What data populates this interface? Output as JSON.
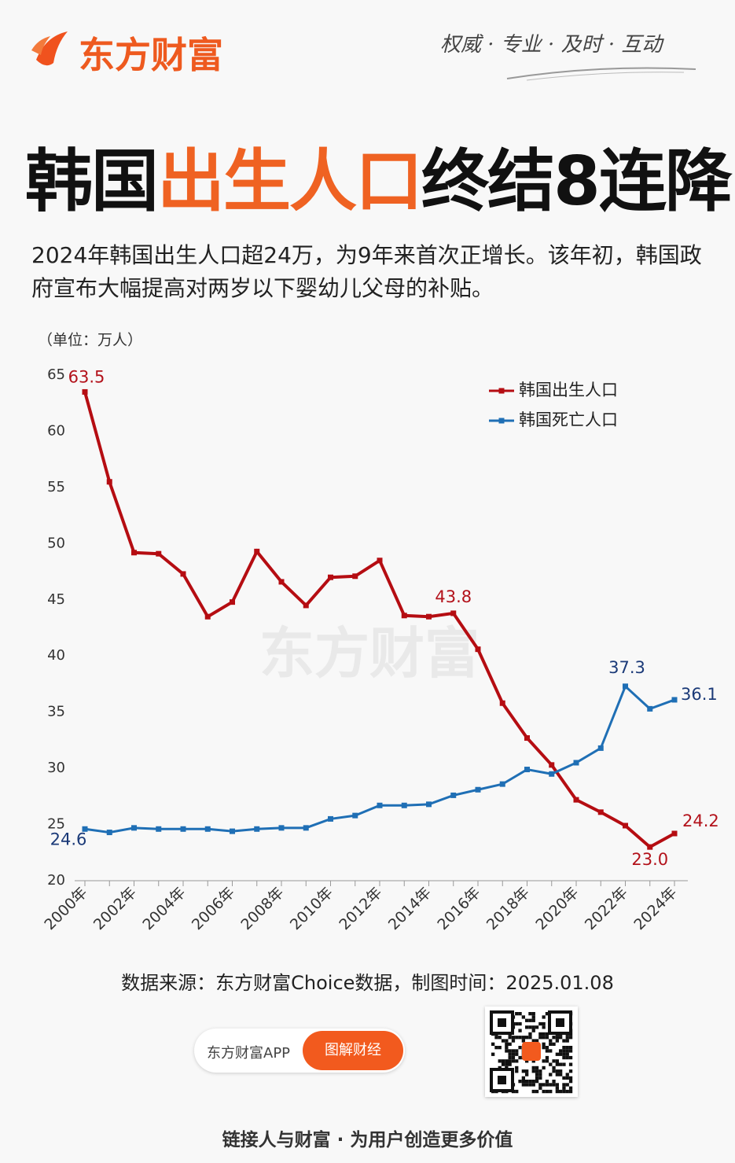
{
  "header": {
    "logo": "东方财富",
    "slogan": "权威 · 专业 · 及时 · 互动"
  },
  "title": {
    "parts": [
      "韩国",
      "出生人口",
      "终结8连降"
    ]
  },
  "subtitle": "2024年韩国出生人口超24万，为9年来首次正增长。该年初，韩国政府宣布大幅提高对两岁以下婴幼儿父母的补贴。",
  "chart_data": {
    "type": "line",
    "unit": "（单位：万人）",
    "watermark": "东方财富",
    "categories": [
      "2000年",
      null,
      "2002年",
      null,
      "2004年",
      null,
      "2006年",
      null,
      "2008年",
      null,
      "2010年",
      null,
      "2012年",
      null,
      "2014年",
      null,
      "2016年",
      null,
      "2018年",
      null,
      "2020年",
      null,
      "2022年",
      null,
      "2024年"
    ],
    "series": [
      {
        "name": "韩国出生人口",
        "color": "#b50d12",
        "label_color": "#b3121b",
        "values": [
          63.5,
          55.5,
          49.2,
          49.1,
          47.3,
          43.5,
          44.8,
          49.3,
          46.6,
          44.5,
          47.0,
          47.1,
          48.5,
          43.6,
          43.5,
          43.8,
          40.6,
          35.8,
          32.7,
          30.3,
          27.2,
          26.1,
          24.9,
          23.0,
          24.2
        ],
        "value_labels": [
          "63.5",
          null,
          null,
          null,
          null,
          null,
          null,
          null,
          null,
          null,
          null,
          null,
          null,
          null,
          null,
          "43.8",
          null,
          null,
          null,
          null,
          null,
          null,
          null,
          "23.0",
          "24.2"
        ]
      },
      {
        "name": "韩国死亡人口",
        "color": "#1f6fb5",
        "label_color": "#1b3a78",
        "values": [
          24.6,
          24.3,
          24.7,
          24.6,
          24.6,
          24.6,
          24.4,
          24.6,
          24.7,
          24.7,
          25.5,
          25.8,
          26.7,
          26.7,
          26.8,
          27.6,
          28.1,
          28.6,
          29.9,
          29.5,
          30.5,
          31.8,
          37.3,
          35.3,
          36.1
        ],
        "value_labels": [
          "24.6",
          null,
          null,
          null,
          null,
          null,
          null,
          null,
          null,
          null,
          null,
          null,
          null,
          null,
          null,
          null,
          null,
          null,
          null,
          null,
          null,
          null,
          "37.3",
          null,
          "36.1"
        ]
      }
    ],
    "ylim": [
      20,
      65
    ],
    "yticks": [
      20,
      25,
      30,
      35,
      40,
      45,
      50,
      55,
      60,
      65
    ],
    "grid": false,
    "legend": "top-right"
  },
  "source": "数据来源：东方财富Choice数据，制图时间：2025.01.08",
  "footer": {
    "app": "东方财富APP",
    "button": "图解财经",
    "tagline": "链接人与财富 · 为用户创造更多价值"
  }
}
